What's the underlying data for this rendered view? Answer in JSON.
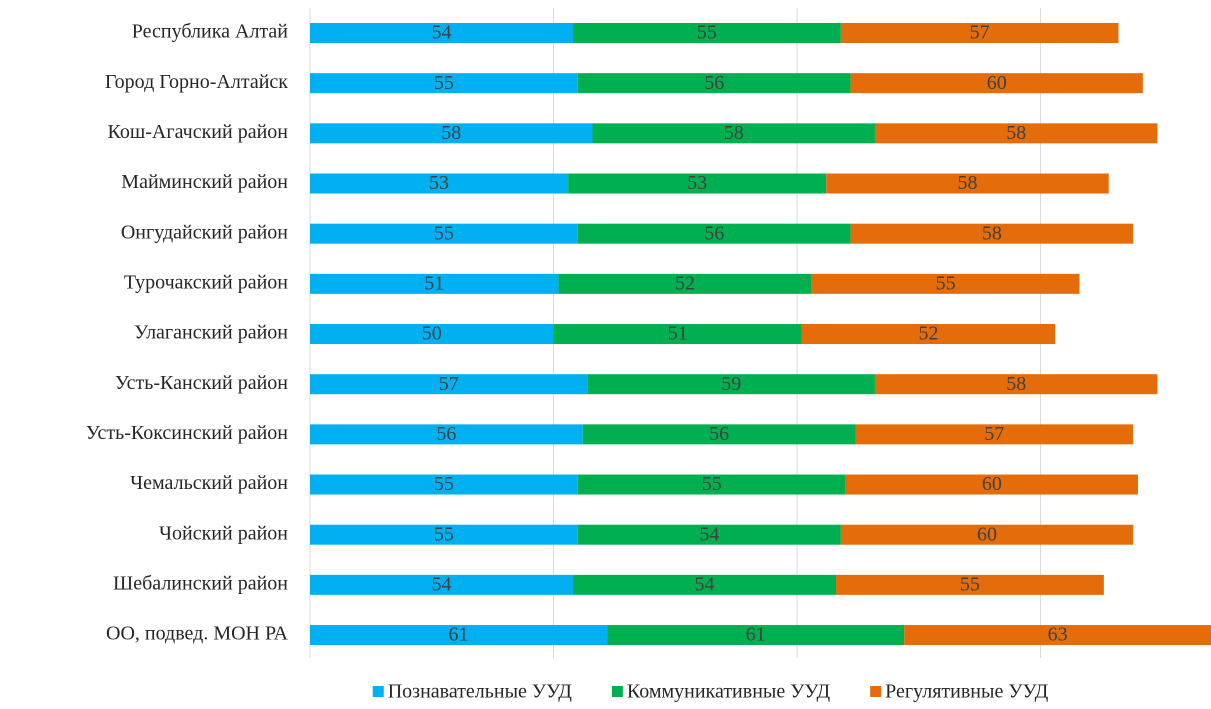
{
  "chart_data": {
    "type": "stacked_barh",
    "categories": [
      "Республика Алтай",
      "Город Горно-Алтайск",
      "Кош-Агачский район",
      "Майминский район",
      "Онгудайский район",
      "Турочакский район",
      "Улаганский район",
      "Усть-Канский район",
      "Усть-Коксинский район",
      "Чемальский район",
      "Чойский район",
      "Шебалинский район",
      "ОО, подвед. МОН РА"
    ],
    "series": [
      {
        "name": "Познавательные УУД",
        "color": "#00b0f0",
        "values": [
          54,
          55,
          58,
          53,
          55,
          51,
          50,
          57,
          56,
          55,
          55,
          54,
          61
        ]
      },
      {
        "name": "Коммуникативные УУД",
        "color": "#00b050",
        "values": [
          55,
          56,
          58,
          53,
          56,
          52,
          51,
          59,
          56,
          55,
          54,
          54,
          61
        ]
      },
      {
        "name": "Регулятивные УУД",
        "color": "#e46c0a",
        "values": [
          57,
          60,
          58,
          58,
          58,
          55,
          52,
          58,
          57,
          60,
          60,
          55,
          63
        ]
      }
    ],
    "xlim": [
      0,
      185
    ],
    "xticks": [
      0,
      50,
      100,
      150
    ],
    "grid": true,
    "show_tick_labels": false,
    "legend": "bottom"
  }
}
